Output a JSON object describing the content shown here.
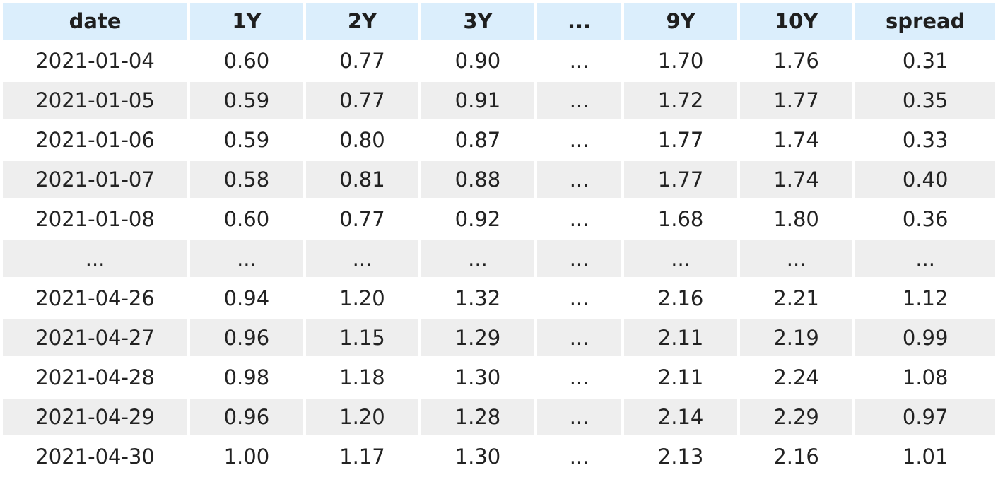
{
  "chart_data": {
    "type": "table",
    "columns": [
      "date",
      "1Y",
      "2Y",
      "3Y",
      "...",
      "9Y",
      "10Y",
      "spread"
    ],
    "rows": [
      [
        "2021-01-04",
        "0.60",
        "0.77",
        "0.90",
        "...",
        "1.70",
        "1.76",
        "0.31"
      ],
      [
        "2021-01-05",
        "0.59",
        "0.77",
        "0.91",
        "...",
        "1.72",
        "1.77",
        "0.35"
      ],
      [
        "2021-01-06",
        "0.59",
        "0.80",
        "0.87",
        "...",
        "1.77",
        "1.74",
        "0.33"
      ],
      [
        "2021-01-07",
        "0.58",
        "0.81",
        "0.88",
        "...",
        "1.77",
        "1.74",
        "0.40"
      ],
      [
        "2021-01-08",
        "0.60",
        "0.77",
        "0.92",
        "...",
        "1.68",
        "1.80",
        "0.36"
      ],
      [
        "...",
        "...",
        "...",
        "...",
        "...",
        "...",
        "...",
        "..."
      ],
      [
        "2021-04-26",
        "0.94",
        "1.20",
        "1.32",
        "...",
        "2.16",
        "2.21",
        "1.12"
      ],
      [
        "2021-04-27",
        "0.96",
        "1.15",
        "1.29",
        "...",
        "2.11",
        "2.19",
        "0.99"
      ],
      [
        "2021-04-28",
        "0.98",
        "1.18",
        "1.30",
        "...",
        "2.11",
        "2.24",
        "1.08"
      ],
      [
        "2021-04-29",
        "0.96",
        "1.20",
        "1.28",
        "...",
        "2.14",
        "2.29",
        "0.97"
      ],
      [
        "2021-04-30",
        "1.00",
        "1.17",
        "1.30",
        "...",
        "2.13",
        "2.16",
        "1.01"
      ]
    ]
  },
  "colors": {
    "header_bg": "#dbeefc",
    "stripe_bg": "#eeeeee",
    "text": "#222222"
  }
}
